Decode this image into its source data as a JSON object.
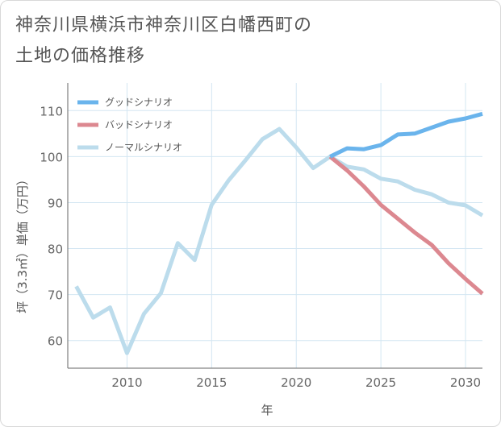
{
  "title_lines": [
    "神奈川県横浜市神奈川区白幡西町の",
    "土地の価格推移"
  ],
  "chart_data": {
    "type": "line",
    "xlabel": "年",
    "ylabel": "坪（3.3㎡）単価（万円）",
    "xlim": [
      2006.5,
      2031
    ],
    "ylim": [
      54,
      116
    ],
    "xticks": [
      2010,
      2015,
      2020,
      2025,
      2030
    ],
    "yticks": [
      60,
      70,
      80,
      90,
      100,
      110
    ],
    "grid": true,
    "legend_position": "top-left",
    "series": [
      {
        "name": "グッドシナリオ",
        "color": "#6ab4ec",
        "x": [
          2022,
          2023,
          2024,
          2025,
          2026,
          2027,
          2028,
          2029,
          2030,
          2031
        ],
        "y": [
          100.0,
          101.8,
          101.6,
          102.5,
          104.8,
          105.0,
          106.3,
          107.6,
          108.3,
          109.3
        ]
      },
      {
        "name": "バッドシナリオ",
        "color": "#dc8890",
        "x": [
          2022,
          2023,
          2024,
          2025,
          2026,
          2027,
          2028,
          2029,
          2030,
          2031
        ],
        "y": [
          100.0,
          97.0,
          93.5,
          89.5,
          86.5,
          83.5,
          80.8,
          76.8,
          73.4,
          70.2
        ]
      },
      {
        "name": "ノーマルシナリオ",
        "color": "#bcdcec",
        "x": [
          2007,
          2008,
          2009,
          2010,
          2011,
          2012,
          2013,
          2014,
          2015,
          2016,
          2017,
          2018,
          2019,
          2020,
          2021,
          2022,
          2023,
          2024,
          2025,
          2026,
          2027,
          2028,
          2029,
          2030,
          2031
        ],
        "y": [
          71.8,
          65.0,
          67.2,
          57.3,
          65.8,
          70.3,
          81.2,
          77.5,
          89.5,
          94.8,
          99.2,
          103.8,
          106.0,
          102.0,
          97.5,
          100.0,
          97.8,
          97.2,
          95.2,
          94.6,
          92.8,
          91.8,
          90.0,
          89.4,
          87.2
        ]
      }
    ]
  }
}
